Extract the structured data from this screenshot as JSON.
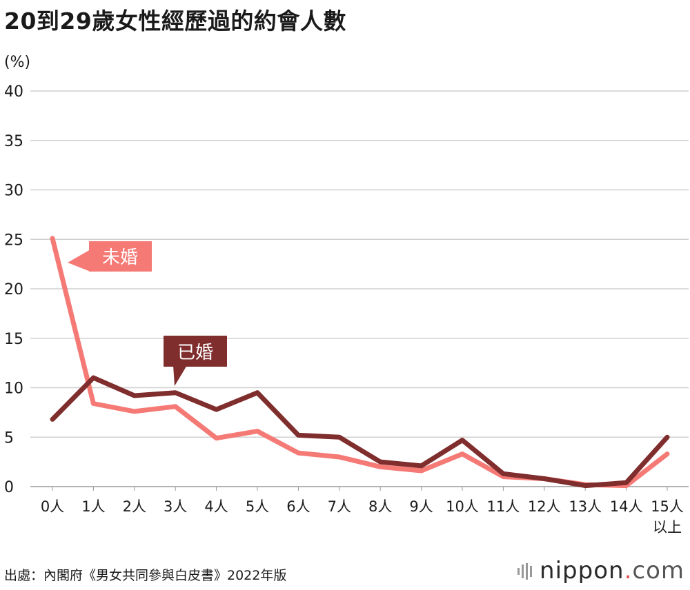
{
  "header": {
    "title": "20到29歲女性經歷過的約會人數",
    "unit": "(%)"
  },
  "footer": {
    "source": "出處：內閣府《男女共同參與白皮書》2022年版"
  },
  "brand": {
    "name": "nippon",
    "dot": ".",
    "tld": "com",
    "icon": "nippon-logo-icon"
  },
  "colors": {
    "unmarried": "#f57a76",
    "married": "#7f2d2d",
    "grid": "#cfcfcf"
  },
  "chart_data": {
    "type": "line",
    "title": "20到29歲女性經歷過的約會人數",
    "ylabel": "(%)",
    "ylim": [
      0,
      40
    ],
    "yticks": [
      "0",
      "5",
      "10",
      "15",
      "20",
      "25",
      "30",
      "35",
      "40"
    ],
    "categories": [
      "0人",
      "1人",
      "2人",
      "3人",
      "4人",
      "5人",
      "6人",
      "7人",
      "8人",
      "9人",
      "10人",
      "11人",
      "12人",
      "13人",
      "14人",
      "15人"
    ],
    "last_category_suffix": "以上",
    "grid": true,
    "series": [
      {
        "name": "未婚",
        "key": "unmarried",
        "values": [
          25.1,
          8.4,
          7.6,
          8.1,
          4.9,
          5.6,
          3.4,
          3.0,
          2.0,
          1.6,
          3.3,
          1.0,
          0.8,
          0.2,
          0.1,
          3.3
        ]
      },
      {
        "name": "已婚",
        "key": "married",
        "values": [
          6.8,
          11.0,
          9.2,
          9.5,
          7.8,
          9.5,
          5.2,
          5.0,
          2.5,
          2.1,
          4.7,
          1.3,
          0.8,
          0.1,
          0.4,
          5.0
        ]
      }
    ]
  }
}
